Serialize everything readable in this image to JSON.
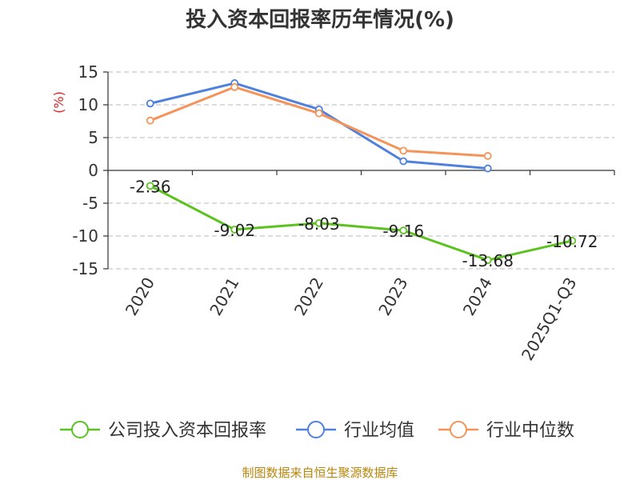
{
  "chart_data": {
    "type": "line",
    "title": "投入资本回报率历年情况(%)",
    "ylabel": "(%)",
    "xlabel": "",
    "categories": [
      "2020",
      "2021",
      "2022",
      "2023",
      "2024",
      "2025Q1-Q3"
    ],
    "ylim": [
      -15,
      15
    ],
    "yticks": [
      15,
      10,
      5,
      0,
      -5,
      -10,
      -15
    ],
    "grid": true,
    "legend_position": "bottom",
    "series": [
      {
        "name": "公司投入资本回报率",
        "color": "#5cc21f",
        "values": [
          -2.36,
          -9.02,
          -8.03,
          -9.16,
          -13.68,
          -10.72
        ],
        "labels": [
          "-2.36",
          "-9.02",
          "-8.03",
          "-9.16",
          "-13.68",
          "-10.72"
        ]
      },
      {
        "name": "行业均值",
        "color": "#4f81dc",
        "values": [
          10.2,
          13.3,
          9.3,
          1.4,
          0.3,
          null
        ]
      },
      {
        "name": "行业中位数",
        "color": "#f5945a",
        "values": [
          7.6,
          12.7,
          8.7,
          3.0,
          2.2,
          null
        ]
      }
    ]
  },
  "source": "制图数据来自恒生聚源数据库"
}
